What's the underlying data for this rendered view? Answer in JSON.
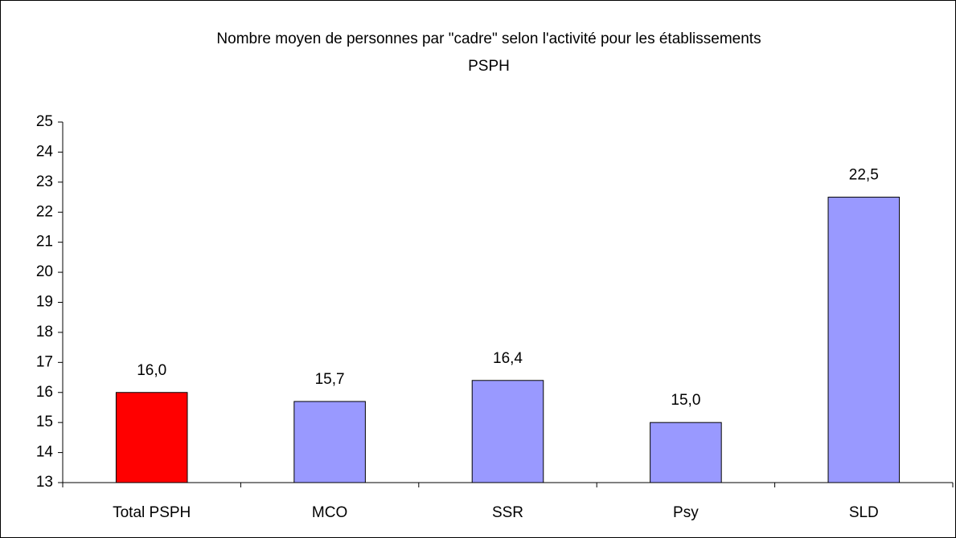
{
  "chart_data": {
    "type": "bar",
    "title": [
      "Nombre moyen de personnes par \"cadre\" selon l'activité pour les établissements",
      "PSPH"
    ],
    "categories": [
      "Total PSPH",
      "MCO",
      "SSR",
      "Psy",
      "SLD"
    ],
    "values": [
      16.0,
      15.7,
      16.4,
      15.0,
      22.5
    ],
    "value_labels": [
      "16,0",
      "15,7",
      "16,4",
      "15,0",
      "22,5"
    ],
    "colors": [
      "#ff0000",
      "#9999ff",
      "#9999ff",
      "#9999ff",
      "#9999ff"
    ],
    "ylim": [
      13,
      25
    ],
    "yticks": [
      13,
      14,
      15,
      16,
      17,
      18,
      19,
      20,
      21,
      22,
      23,
      24,
      25
    ],
    "grid": false
  }
}
